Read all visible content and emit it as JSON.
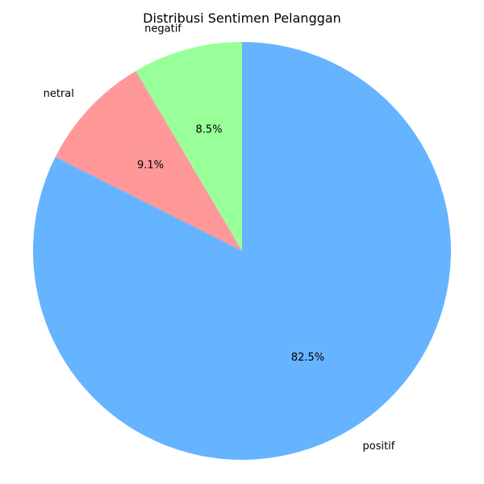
{
  "chart_data": {
    "type": "pie",
    "title": "Distribusi Sentimen Pelanggan",
    "start_angle": 90,
    "direction": "counterclockwise",
    "slices": [
      {
        "label": "negatif",
        "value": 8.5,
        "pct_label": "8.5%",
        "color": "#99ff99"
      },
      {
        "label": "netral",
        "value": 9.1,
        "pct_label": "9.1%",
        "color": "#ff9999"
      },
      {
        "label": "positif",
        "value": 82.5,
        "pct_label": "82.5%",
        "color": "#66b3ff"
      }
    ]
  }
}
